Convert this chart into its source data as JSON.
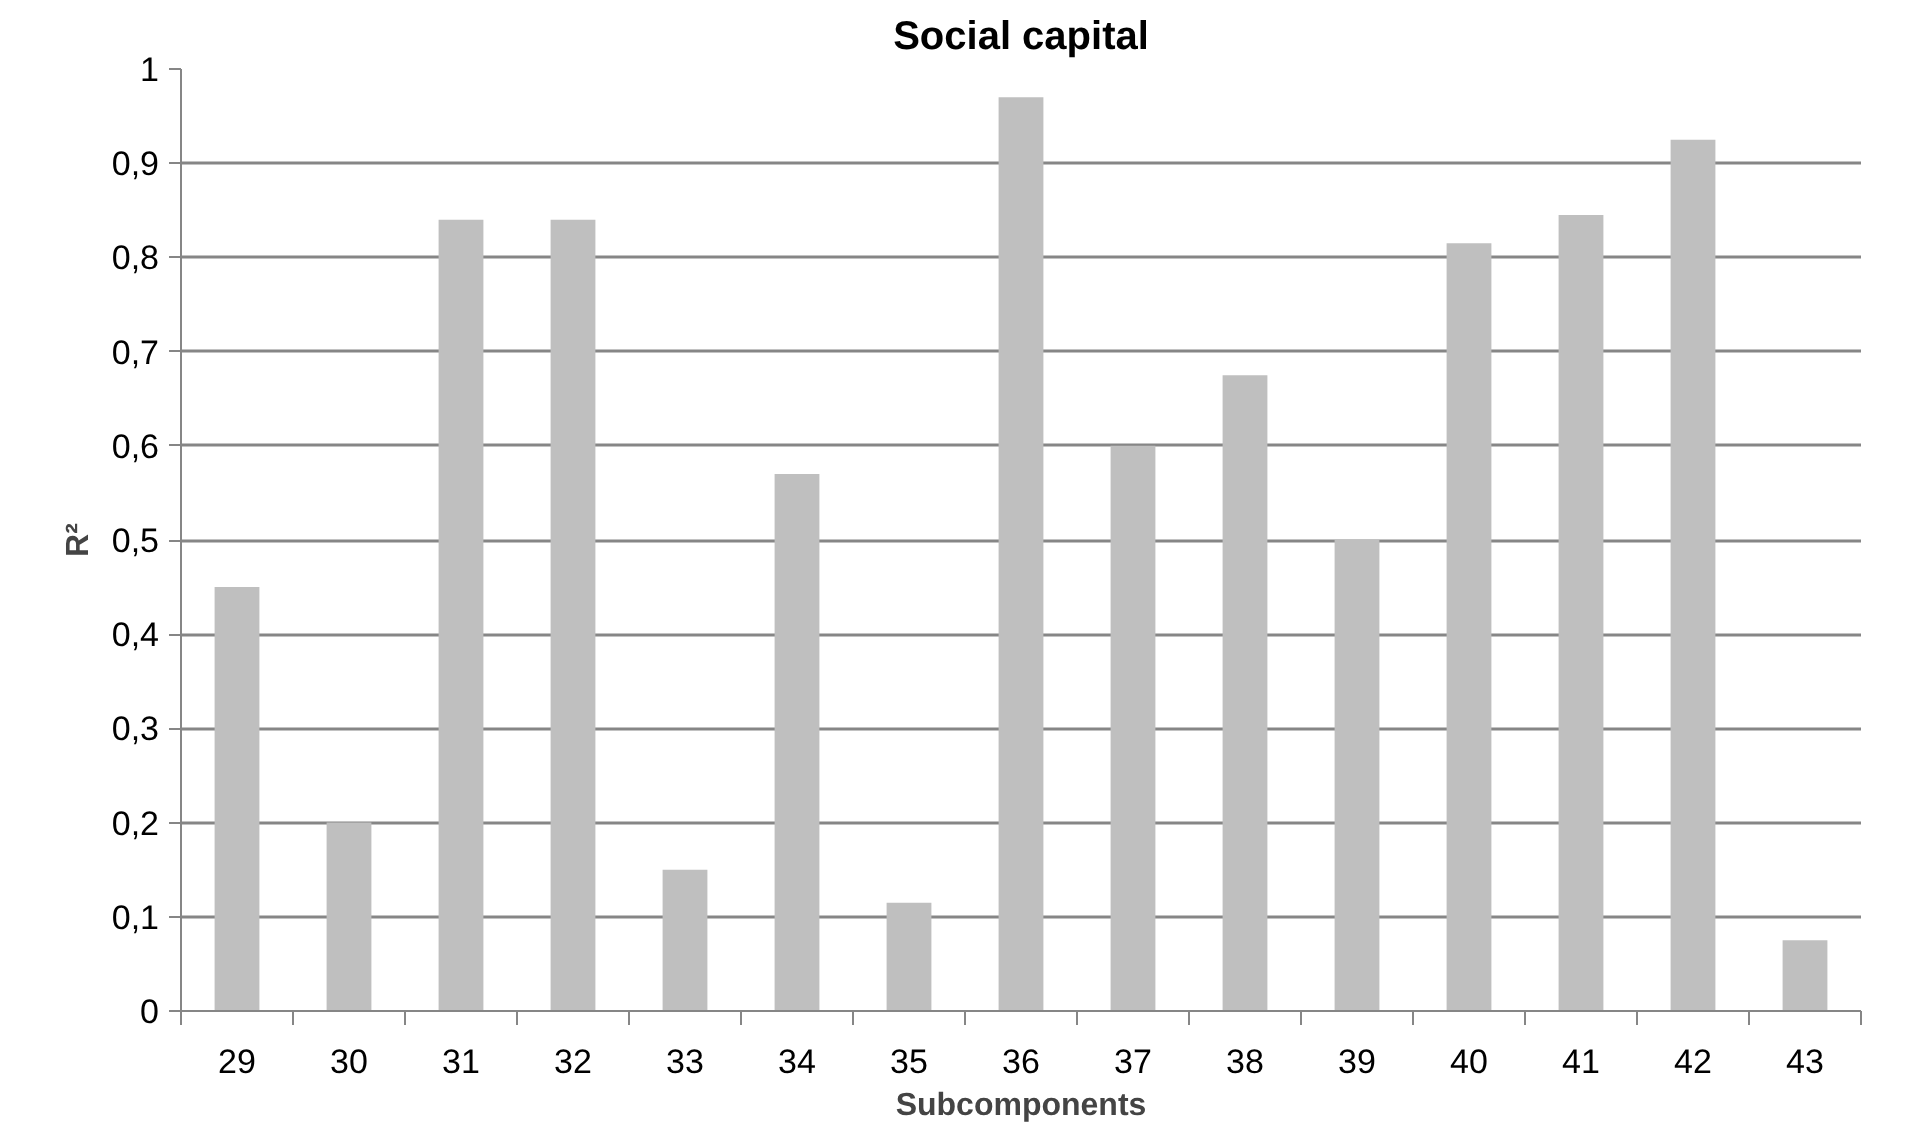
{
  "chart_data": {
    "type": "bar",
    "title": "Social capital",
    "xlabel": "Subcomponents",
    "ylabel": "R²",
    "categories": [
      "29",
      "30",
      "31",
      "32",
      "33",
      "34",
      "35",
      "36",
      "37",
      "38",
      "39",
      "40",
      "41",
      "42",
      "43"
    ],
    "values": [
      0.45,
      0.2,
      0.84,
      0.84,
      0.15,
      0.57,
      0.115,
      0.97,
      0.6,
      0.675,
      0.5,
      0.815,
      0.845,
      0.925,
      0.075
    ],
    "color": "#bfbfbf",
    "ylim": [
      0,
      1
    ],
    "yticks": [
      0,
      {
        "value": 0.1,
        "label": "0,1"
      },
      {
        "value": 0.2,
        "label": "0,2"
      },
      {
        "value": 0.3,
        "label": "0,3"
      },
      {
        "value": 0.4,
        "label": "0,4"
      },
      {
        "value": 0.5,
        "label": "0,5"
      },
      {
        "value": 0.6,
        "label": "0,6"
      },
      {
        "value": 0.7,
        "label": "0,7"
      },
      {
        "value": 0.8,
        "label": "0,8"
      },
      {
        "value": 0.9,
        "label": "0,9"
      },
      1
    ],
    "grid": "y"
  }
}
